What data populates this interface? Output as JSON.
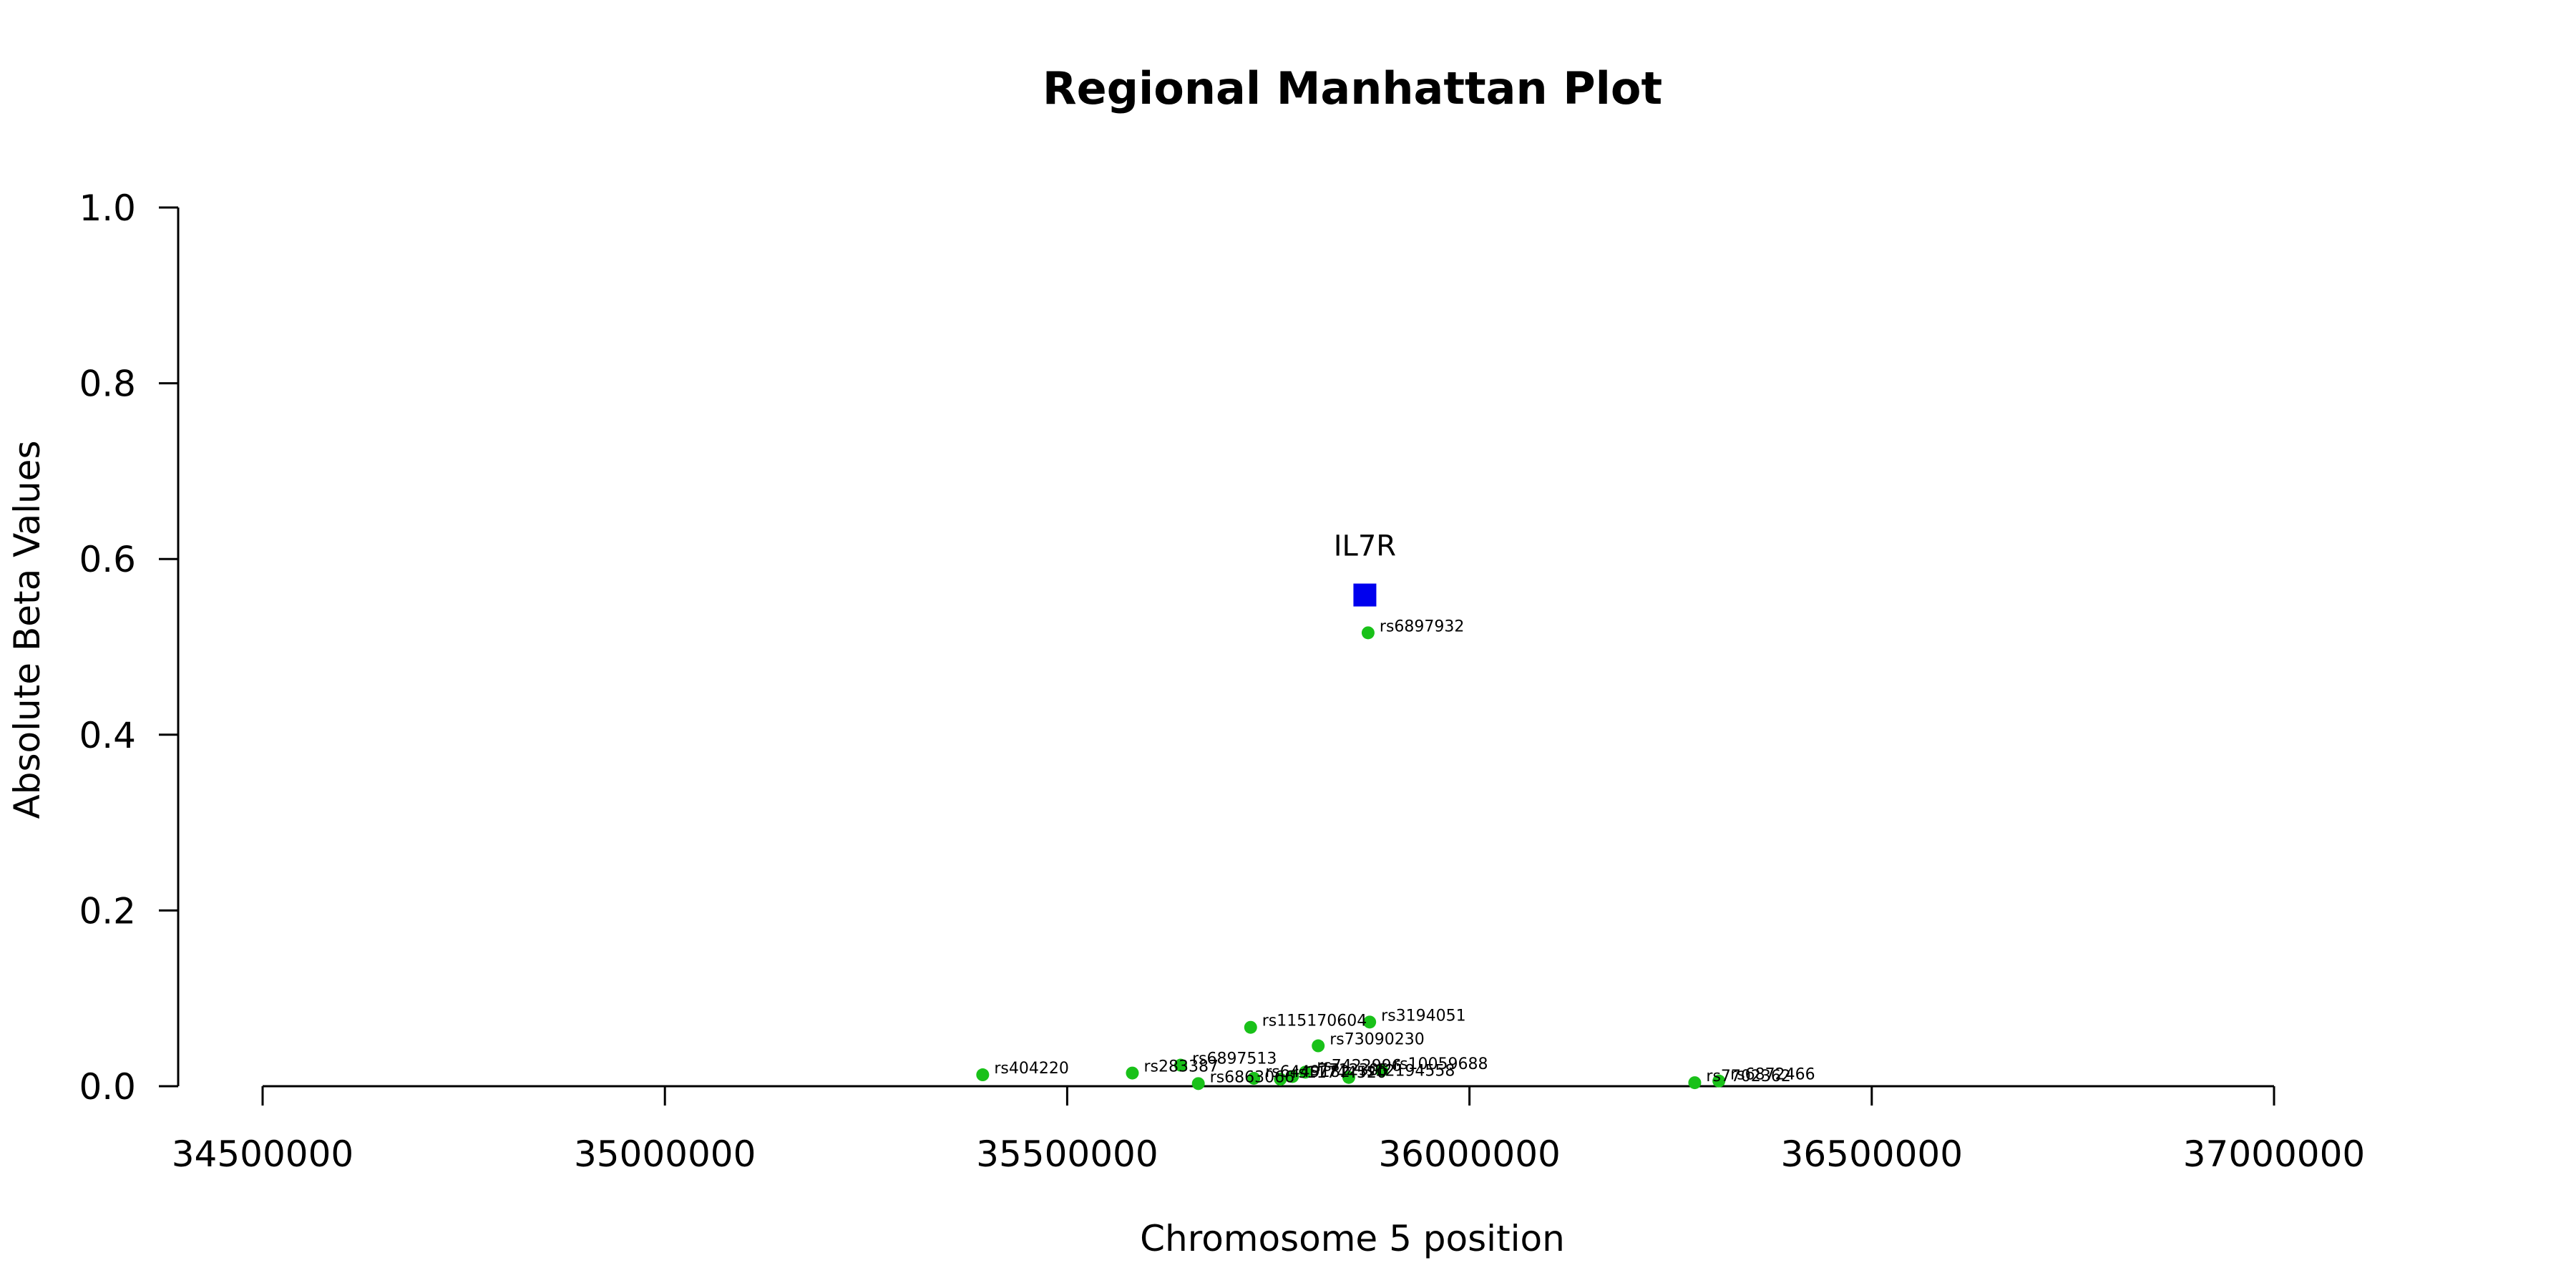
{
  "chart_data": {
    "type": "scatter",
    "title": "Regional Manhattan Plot",
    "xlabel": "Chromosome 5 position",
    "ylabel": "Absolute Beta Values",
    "xlim": [
      34500000,
      37000000
    ],
    "ylim": [
      0,
      1.0
    ],
    "x_ticks": [
      34500000,
      35000000,
      35500000,
      36000000,
      36500000,
      37000000
    ],
    "y_ticks": [
      0.0,
      0.2,
      0.4,
      0.6,
      0.8,
      1.0
    ],
    "x_tick_labels": [
      "34500000",
      "35000000",
      "35500000",
      "36000000",
      "36500000",
      "37000000"
    ],
    "y_tick_labels": [
      "0.0",
      "0.2",
      "0.4",
      "0.6",
      "0.8",
      "1.0"
    ],
    "grid": false,
    "colors": {
      "snp": "#19c119",
      "gene": "#0000ee"
    },
    "gene": {
      "name": "IL7R",
      "x": 35870000,
      "y": 0.559
    },
    "series": [
      {
        "points": [
          {
            "label": "rs6897932",
            "x": 35874000,
            "y": 0.516
          },
          {
            "label": "rs3194051",
            "x": 35876000,
            "y": 0.073
          },
          {
            "label": "rs115170604",
            "x": 35728000,
            "y": 0.067
          },
          {
            "label": "rs73090230",
            "x": 35812000,
            "y": 0.046
          },
          {
            "label": "rs6897513",
            "x": 35641000,
            "y": 0.024
          },
          {
            "label": "rs10059688",
            "x": 35891000,
            "y": 0.018
          },
          {
            "label": "rs283387",
            "x": 35581000,
            "y": 0.015
          },
          {
            "label": "rs404220",
            "x": 35395000,
            "y": 0.013
          },
          {
            "label": "rs7422996",
            "x": 35796000,
            "y": 0.016
          },
          {
            "label": "rs12194558",
            "x": 35850000,
            "y": 0.01
          },
          {
            "label": "rs6863066",
            "x": 35663000,
            "y": 0.003
          },
          {
            "label": "rs6449182",
            "x": 35732000,
            "y": 0.009
          },
          {
            "label": "rs11744520",
            "x": 35765000,
            "y": 0.008
          },
          {
            "label": "rs7712305",
            "x": 35780000,
            "y": 0.011
          },
          {
            "label": "rs7702362",
            "x": 36280000,
            "y": 0.004
          },
          {
            "label": "rs6872466",
            "x": 36310000,
            "y": 0.006
          }
        ]
      }
    ]
  }
}
